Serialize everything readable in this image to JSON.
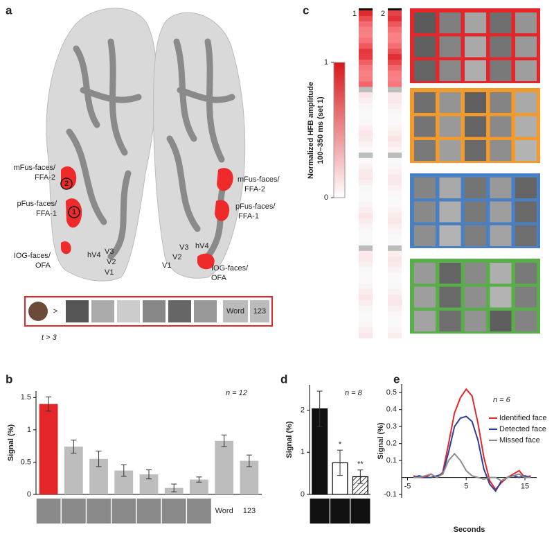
{
  "panel_labels": [
    "a",
    "b",
    "c",
    "d",
    "e"
  ],
  "panel_a": {
    "left": {
      "mfus_1": "mFus-faces/",
      "mfus_2": "FFA-2",
      "pfus_1": "pFus-faces/",
      "pfus_2": "FFA-1",
      "iog_1": "IOG-faces/",
      "iog_2": "OFA",
      "hv4": "hV4",
      "v3": "V3",
      "v2": "V2",
      "v1": "V1"
    },
    "right": {
      "mfus_1": "mFus-faces/",
      "mfus_2": "FFA-2",
      "pfus_1": "pFus-faces/",
      "pfus_2": "FFA-1",
      "iog_1": "IOG-faces/",
      "iog_2": "OFA",
      "hv4": "hV4",
      "v3": "V3",
      "v2": "V2",
      "v1": "V1"
    },
    "markers": [
      "1",
      "2"
    ],
    "stimulus": {
      "comparison": ">",
      "word": "Word",
      "number": "123",
      "threshold": "t > 3"
    }
  },
  "panel_c": {
    "colorbar_label": [
      "Normalized HFB amplitude",
      "100–350 ms (set 1)"
    ],
    "colorbar_ticks": [
      0,
      1
    ],
    "column_labels": [
      "1",
      "2"
    ]
  },
  "chart_data": [
    {
      "type": "bar",
      "ylabel": "Signal (%)",
      "annotation": "n = 12",
      "categories": [
        null,
        null,
        null,
        null,
        null,
        null,
        null,
        "Word",
        "123"
      ],
      "values": [
        1.4,
        0.74,
        0.55,
        0.37,
        0.31,
        0.1,
        0.23,
        0.83,
        0.52
      ],
      "errors": [
        0.11,
        0.1,
        0.12,
        0.09,
        0.07,
        0.06,
        0.04,
        0.09,
        0.09
      ],
      "colors": [
        "#e4262a",
        "#bdbdbd",
        "#bdbdbd",
        "#bdbdbd",
        "#bdbdbd",
        "#bdbdbd",
        "#bdbdbd",
        "#bdbdbd",
        "#bdbdbd"
      ],
      "ylim": [
        0,
        1.6
      ],
      "yticks": [
        0,
        0.5,
        1,
        1.5
      ]
    },
    {
      "type": "bar",
      "ylabel": "Signal (%)",
      "annotation": "n = 8",
      "categories": [
        null,
        null,
        null
      ],
      "values": [
        2.03,
        0.75,
        0.42
      ],
      "errors": [
        0.42,
        0.3,
        0.16
      ],
      "significance": [
        null,
        "*",
        "**"
      ],
      "colors": [
        "#111111",
        "#ffffff",
        "#ffffff"
      ],
      "hatch": [
        false,
        false,
        true
      ],
      "edgecolor": "#000000",
      "ylim": [
        0,
        2.6
      ],
      "yticks": [
        0,
        1,
        2
      ]
    },
    {
      "type": "line",
      "xlabel": "Seconds",
      "ylabel": "Signal (%)",
      "annotation": "n = 6",
      "x": [
        -4,
        -3,
        -2,
        -1,
        0,
        1,
        2,
        3,
        4,
        5,
        6,
        7,
        8,
        9,
        10,
        11,
        12,
        13,
        14,
        15,
        16
      ],
      "series": [
        {
          "name": "Identified face",
          "color": "#e4262a",
          "values": [
            0.01,
            0.0,
            0.0,
            0.02,
            0.0,
            0.03,
            0.2,
            0.38,
            0.47,
            0.52,
            0.48,
            0.32,
            0.12,
            -0.02,
            -0.07,
            -0.03,
            0.0,
            0.02,
            0.04,
            0.0,
            0.01
          ]
        },
        {
          "name": "Detected face",
          "color": "#2b3f99",
          "values": [
            0.0,
            0.01,
            0.0,
            0.0,
            0.01,
            0.02,
            0.15,
            0.3,
            0.35,
            0.36,
            0.33,
            0.22,
            0.05,
            -0.04,
            -0.08,
            -0.02,
            0.0,
            0.01,
            0.0,
            0.01,
            0.0
          ]
        },
        {
          "name": "Missed face",
          "color": "#8c8c8c",
          "values": [
            0.0,
            0.0,
            0.01,
            0.02,
            0.0,
            0.02,
            0.1,
            0.14,
            0.1,
            0.04,
            0.01,
            0.0,
            -0.01,
            0.0,
            0.0,
            -0.02,
            0.0,
            0.01,
            0.02,
            0.0,
            0.0
          ]
        }
      ],
      "xlim": [
        -6,
        17
      ],
      "xticks": [
        -5,
        5,
        15
      ],
      "ylim": [
        -0.12,
        0.55
      ],
      "yticks": [
        -0.1,
        0.1,
        0.2,
        0.3,
        0.4,
        0.5
      ]
    }
  ]
}
